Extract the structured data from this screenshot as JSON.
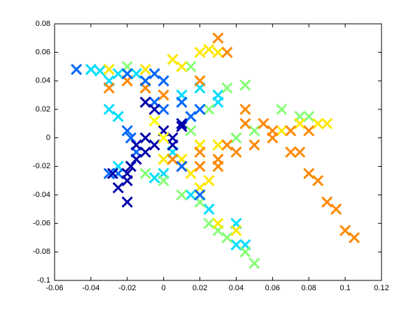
{
  "chart_data": {
    "type": "scatter",
    "xlim": [
      -0.06,
      0.12
    ],
    "xticks": [
      -0.06,
      -0.04,
      -0.02,
      0,
      0.02,
      0.04,
      0.06,
      0.08,
      0.1,
      0.12
    ],
    "ylim": [
      -0.1,
      0.08
    ],
    "yticks": [
      -0.1,
      -0.08,
      -0.06,
      -0.04,
      -0.02,
      0,
      0.02,
      0.04,
      0.06,
      0.08
    ],
    "series": [
      {
        "color": "#00ddff",
        "x": [
          -0.04,
          -0.035,
          -0.025,
          -0.03,
          -0.015,
          -0.03,
          -0.025,
          0.01,
          0.02,
          0.03,
          0.03,
          0.04,
          0.045,
          0.04,
          0.015,
          0.025,
          -0.005,
          -0.025,
          0.01,
          0.005,
          0.0
        ],
        "values": [
          0.048,
          0.047,
          0.045,
          0.04,
          0.045,
          0.02,
          0.015,
          0.03,
          0.035,
          0.03,
          0.025,
          -0.06,
          -0.075,
          -0.075,
          -0.04,
          -0.05,
          -0.028,
          -0.02,
          0.01,
          -0.01,
          -0.025
        ]
      },
      {
        "color": "#88ff77",
        "x": [
          0.035,
          0.045,
          0.065,
          0.075,
          0.08,
          0.05,
          0.04,
          0.015,
          -0.02,
          0.05,
          0.045,
          0.03,
          0.025,
          0.035,
          0.01,
          0.0,
          -0.01,
          0.025,
          0.015,
          0.02
        ],
        "values": [
          0.035,
          0.037,
          0.02,
          0.015,
          0.015,
          0.005,
          0.0,
          0.05,
          0.05,
          -0.088,
          -0.08,
          -0.065,
          -0.06,
          -0.07,
          -0.04,
          -0.03,
          -0.025,
          0.02,
          0.005,
          -0.045
        ]
      },
      {
        "color": "#ffe800",
        "x": [
          0.01,
          0.02,
          0.025,
          0.03,
          -0.01,
          -0.03,
          0.005,
          0.075,
          0.085,
          0.09,
          0.065,
          0.02,
          0.03,
          0.0,
          0.01,
          0.025,
          0.03,
          0.04,
          0.015,
          0.02
        ],
        "values": [
          0.05,
          0.06,
          0.062,
          0.06,
          0.048,
          0.048,
          0.055,
          0.01,
          0.01,
          0.01,
          0.005,
          -0.005,
          -0.005,
          -0.015,
          -0.015,
          -0.03,
          -0.06,
          -0.065,
          -0.025,
          -0.035
        ]
      },
      {
        "color": "#ff8800",
        "x": [
          0.03,
          0.035,
          0.045,
          0.055,
          0.06,
          0.07,
          0.075,
          0.08,
          0.085,
          0.09,
          0.095,
          0.1,
          0.105,
          0.02,
          0.03,
          0.04,
          0.05,
          0.06,
          0.07,
          0.08,
          -0.03,
          -0.02,
          -0.01,
          0.0,
          0.02,
          0.02,
          0.01,
          0.03,
          0.005,
          0.045,
          0.035
        ],
        "values": [
          0.07,
          0.06,
          0.02,
          0.01,
          0.005,
          -0.01,
          -0.01,
          -0.025,
          -0.03,
          -0.045,
          -0.05,
          -0.065,
          -0.07,
          -0.01,
          -0.015,
          -0.01,
          -0.005,
          0.0,
          0.005,
          0.005,
          0.035,
          0.04,
          0.035,
          0.03,
          0.04,
          -0.02,
          -0.02,
          -0.02,
          -0.015,
          0.01,
          -0.005
        ]
      },
      {
        "color": "#0066ff",
        "x": [
          -0.048,
          -0.02,
          -0.01,
          0.0,
          -0.02,
          -0.015,
          -0.005,
          0.0,
          0.01,
          0.015,
          -0.025,
          -0.03,
          0.02,
          0.01,
          -0.005,
          0.02,
          -0.018
        ],
        "values": [
          0.048,
          0.045,
          0.04,
          0.04,
          0.005,
          -0.01,
          0.025,
          0.02,
          0.025,
          0.015,
          -0.025,
          -0.025,
          0.02,
          -0.02,
          0.045,
          -0.04,
          0.0
        ]
      },
      {
        "color": "#0000aa",
        "x": [
          -0.02,
          -0.025,
          -0.02,
          -0.018,
          -0.015,
          -0.01,
          -0.005,
          -0.01,
          0.0,
          0.01,
          0.01,
          -0.005,
          -0.01,
          0.005,
          -0.02,
          -0.028,
          0.005,
          -0.015
        ],
        "values": [
          -0.045,
          -0.035,
          -0.03,
          -0.02,
          -0.015,
          -0.01,
          -0.005,
          0.0,
          0.005,
          0.008,
          0.01,
          0.02,
          0.025,
          0.0,
          -0.025,
          -0.025,
          -0.005,
          -0.005
        ]
      },
      {
        "color": "#ffff00",
        "x": [
          -0.005,
          0.0
        ],
        "values": [
          0.012,
          0.0
        ]
      }
    ]
  }
}
